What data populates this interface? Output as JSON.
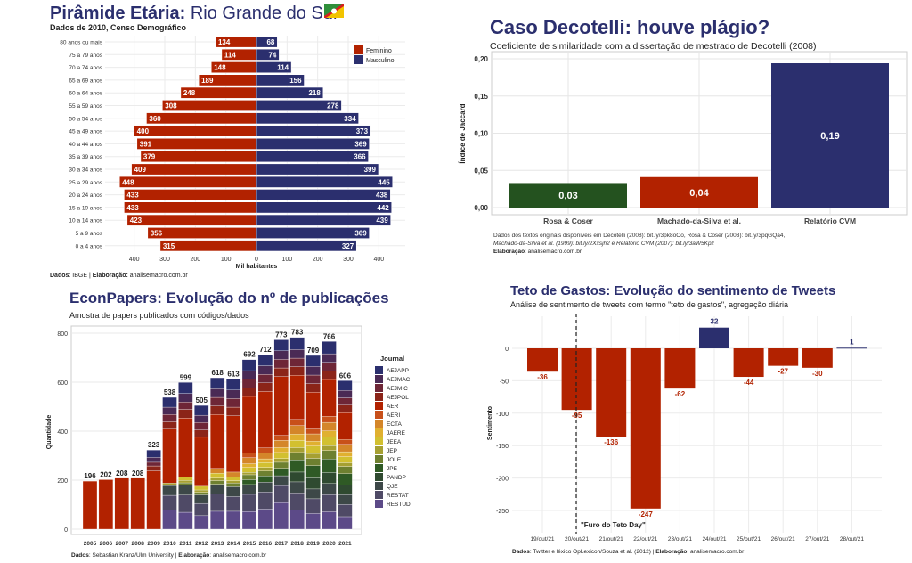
{
  "chart_data": [
    {
      "type": "bar",
      "orientation": "horizontal-pyramid",
      "title_bold": "Pirâmide Etária:",
      "title_rest": "Rio Grande do Sul",
      "subtitle": "Dados de 2010, Censo Demográfico",
      "xlabel": "Mil habitantes",
      "caption_bold1": "Dados",
      "caption_text1": ": IBGE | ",
      "caption_bold2": "Elaboração:",
      "caption_text2": " analisemacro.com.br",
      "xticks": [
        "400",
        "300",
        "200",
        "100",
        "0",
        "100",
        "200",
        "300",
        "400"
      ],
      "categories": [
        "80 anos ou mais",
        "75 a 79 anos",
        "70 a 74 anos",
        "65 a 69 anos",
        "60 a 64 anos",
        "55 a 59 anos",
        "50 a 54 anos",
        "45 a 49 anos",
        "40 a 44 anos",
        "35 a 39 anos",
        "30 a 34 anos",
        "25 a 29 anos",
        "20 a 24 anos",
        "15 a 19 anos",
        "10 a 14 anos",
        "5 a 9 anos",
        "0 a 4 anos"
      ],
      "series": [
        {
          "name": "Feminino",
          "color": "#b22200",
          "values": [
            134,
            114,
            148,
            189,
            248,
            308,
            360,
            400,
            391,
            379,
            409,
            448,
            433,
            433,
            423,
            356,
            315
          ]
        },
        {
          "name": "Masculino",
          "color": "#2b2f6e",
          "values": [
            68,
            74,
            114,
            156,
            218,
            278,
            334,
            373,
            369,
            366,
            399,
            445,
            438,
            442,
            439,
            369,
            327
          ]
        }
      ],
      "xlim": [
        -450,
        450
      ],
      "legend": "top-right",
      "grid": true,
      "flag_icon": "rio-grande-do-sul-flag-icon"
    },
    {
      "type": "bar",
      "title": "Caso Decotelli: houve plágio?",
      "subtitle": "Coeficiente de similaridade com a dissertação de mestrado de Decotelli (2008)",
      "ylabel": "Índice de Jaccard",
      "yticks": [
        "0,00",
        "0,05",
        "0,10",
        "0,15",
        "0,20"
      ],
      "ylim": [
        0,
        0.2
      ],
      "categories": [
        "Rosa & Coser",
        "Machado-da-Silva et al.",
        "Relatório CVM"
      ],
      "values": [
        0.033,
        0.041,
        0.194
      ],
      "labels": [
        "0,03",
        "0,04",
        "0,19"
      ],
      "colors": [
        "#24521f",
        "#b22200",
        "#2b2f6e"
      ],
      "caption_line1": "Dados dos textos originais disponíveis em Decotelli (2008): bit.ly/3pk8oOo, Rosa & Coser (2003): bit.ly/3pqGQa4,",
      "caption_line2": "Machado-da-Silva et al. (1999): bit.ly/2Xxsjh2 e Relatório CVM (2007): bit.ly/3aW5Kpz",
      "caption_line3_bold": "Elaboração",
      "caption_line3": ": analisemacro.com.br",
      "grid": true
    },
    {
      "type": "bar",
      "stacked": true,
      "title": "EconPapers: Evolução do nº de publicações",
      "subtitle": "Amostra de papers publicados com códigos/dados",
      "ylabel": "Quantidade",
      "yticks": [
        "0",
        "200",
        "400",
        "600",
        "800"
      ],
      "ylim": [
        0,
        820
      ],
      "legend_title": "Journal",
      "legend": "right",
      "categories": [
        "2005",
        "2006",
        "2007",
        "2008",
        "2009",
        "2010",
        "2011",
        "2012",
        "2013",
        "2014",
        "2015",
        "2016",
        "2017",
        "2018",
        "2019",
        "2020",
        "2021"
      ],
      "totals": [
        196,
        202,
        208,
        208,
        323,
        538,
        599,
        505,
        618,
        613,
        692,
        712,
        773,
        783,
        709,
        766,
        606
      ],
      "series_names": [
        "AEJAPP",
        "AEJMAC",
        "AEJMIC",
        "AEJPOL",
        "AER",
        "AERI",
        "ECTA",
        "JAERE",
        "JEEA",
        "JEP",
        "JOLE",
        "JPE",
        "PANDP",
        "QJE",
        "RESTAT",
        "RESTUD"
      ],
      "series_colors": [
        "#2b2f6e",
        "#4a2a55",
        "#6e2637",
        "#8b2418",
        "#b22200",
        "#c8501a",
        "#d4862a",
        "#e0b030",
        "#d2c030",
        "#a6a032",
        "#6e8030",
        "#2f5a25",
        "#2f4a30",
        "#3d4848",
        "#4f4a66",
        "#5c4a88"
      ],
      "values_by_year": [
        [
          0,
          0,
          0,
          0,
          196,
          0,
          0,
          0,
          0,
          0,
          0,
          0,
          0,
          0,
          0,
          0
        ],
        [
          0,
          0,
          0,
          0,
          202,
          0,
          0,
          0,
          0,
          0,
          0,
          0,
          0,
          0,
          0,
          0
        ],
        [
          0,
          0,
          0,
          0,
          208,
          0,
          0,
          0,
          0,
          0,
          0,
          0,
          0,
          0,
          0,
          0
        ],
        [
          0,
          0,
          0,
          0,
          208,
          0,
          0,
          0,
          0,
          0,
          0,
          0,
          0,
          0,
          0,
          0
        ],
        [
          30,
          20,
          15,
          20,
          238,
          0,
          0,
          0,
          0,
          0,
          0,
          0,
          0,
          0,
          0,
          0
        ],
        [
          40,
          30,
          30,
          30,
          220,
          0,
          0,
          0,
          0,
          10,
          0,
          0,
          0,
          40,
          60,
          78
        ],
        [
          45,
          35,
          30,
          35,
          240,
          0,
          0,
          0,
          15,
          10,
          10,
          0,
          0,
          40,
          70,
          69
        ],
        [
          40,
          30,
          30,
          30,
          200,
          0,
          0,
          0,
          15,
          10,
          10,
          0,
          0,
          35,
          50,
          55
        ],
        [
          45,
          35,
          35,
          35,
          220,
          0,
          20,
          0,
          20,
          10,
          15,
          0,
          0,
          40,
          70,
          73
        ],
        [
          45,
          35,
          35,
          35,
          230,
          0,
          20,
          0,
          15,
          10,
          15,
          0,
          0,
          40,
          60,
          73
        ],
        [
          45,
          35,
          35,
          35,
          230,
          20,
          25,
          15,
          20,
          10,
          20,
          20,
          0,
          40,
          70,
          72
        ],
        [
          45,
          35,
          35,
          35,
          230,
          20,
          25,
          15,
          20,
          15,
          20,
          25,
          0,
          40,
          70,
          82
        ],
        [
          45,
          35,
          35,
          35,
          240,
          20,
          30,
          20,
          25,
          15,
          25,
          30,
          0,
          40,
          70,
          108
        ],
        [
          50,
          35,
          35,
          35,
          180,
          25,
          35,
          25,
          30,
          20,
          30,
          50,
          40,
          45,
          70,
          78
        ],
        [
          45,
          35,
          35,
          35,
          150,
          20,
          30,
          20,
          30,
          20,
          30,
          50,
          45,
          40,
          60,
          64
        ],
        [
          50,
          35,
          35,
          35,
          150,
          25,
          35,
          25,
          35,
          20,
          35,
          55,
          45,
          45,
          70,
          71
        ],
        [
          40,
          30,
          30,
          30,
          110,
          20,
          30,
          20,
          25,
          15,
          30,
          45,
          40,
          40,
          50,
          51
        ]
      ],
      "caption_bold1": "Dados",
      "caption_text1": ": Sebastian Kranz/Ulm University | ",
      "caption_bold2": "Elaboração",
      "caption_text2": ": analisemacro.com.br",
      "grid": true
    },
    {
      "type": "bar",
      "title": "Teto de Gastos: Evolução do sentimento de Tweets",
      "subtitle": "Análise de sentimento de tweets com termo \"teto de gastos\", agregação diária",
      "ylabel": "Sentimento",
      "yticks": [
        "0",
        "-50",
        "-100",
        "-150",
        "-200",
        "-250"
      ],
      "ylim": [
        -262,
        40
      ],
      "categories": [
        "19/out/21",
        "20/out/21",
        "21/out/21",
        "22/out/21",
        "23/out/21",
        "24/out/21",
        "25/out/21",
        "26/out/21",
        "27/out/21",
        "28/out/21"
      ],
      "values": [
        -36,
        -95,
        -136,
        -247,
        -62,
        32,
        -44,
        -27,
        -30,
        1
      ],
      "positive_color": "#2b2f6e",
      "negative_color": "#b22200",
      "annotation": "\"Furo do Teto Day\"",
      "annotation_at": "20/out/21",
      "caption_bold1": "Dados",
      "caption_text1": ": Twitter e léxico OpLexicon/Souza et al. (2012) | ",
      "caption_bold2": "Elaboração",
      "caption_text2": ": analisemacro.com.br",
      "grid": true
    }
  ]
}
